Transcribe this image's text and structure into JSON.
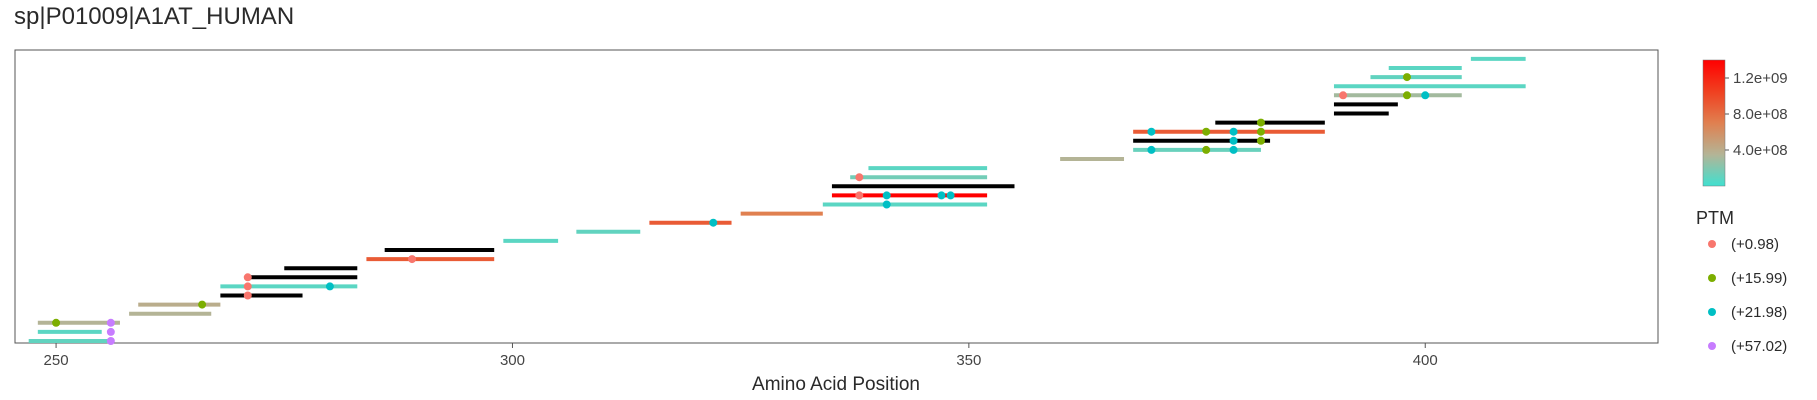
{
  "chart_data": {
    "type": "segment",
    "title": "sp|P01009|A1AT_HUMAN",
    "xlabel": "Amino Acid Position",
    "ylabel": "",
    "xlim": [
      245.5,
      425.5
    ],
    "x_ticks": [
      250,
      300,
      350,
      400
    ],
    "grid": false,
    "colorbar": {
      "min": 0,
      "max": 1400000000,
      "ticks": [
        {
          "value": 400000000,
          "label": "4.0e+08"
        },
        {
          "value": 800000000,
          "label": "8.0e+08"
        },
        {
          "value": 1200000000,
          "label": "1.2e+09"
        }
      ],
      "colors": [
        "#40e0d0",
        "#b4b496",
        "#e08050",
        "#f04020",
        "#ff0000"
      ]
    },
    "legend": {
      "title": "PTM",
      "placement": "right",
      "items": [
        {
          "label": "(+0.98)",
          "color": "#f8766d"
        },
        {
          "label": "(+15.99)",
          "color": "#7cae00"
        },
        {
          "label": "(+21.98)",
          "color": "#00bfc4"
        },
        {
          "label": "(+57.02)",
          "color": "#c77cff"
        }
      ]
    },
    "peptides": [
      {
        "start": 247,
        "end": 256,
        "level": 0,
        "intensity": 100000000
      },
      {
        "start": 248,
        "end": 255,
        "level": 1,
        "intensity": 80000000
      },
      {
        "start": 248,
        "end": 257,
        "level": 2,
        "intensity": 350000000
      },
      {
        "start": 258,
        "end": 267,
        "level": 3,
        "intensity": 350000000
      },
      {
        "start": 259,
        "end": 268,
        "level": 4,
        "intensity": 400000000
      },
      {
        "start": 268,
        "end": 277,
        "level": 5,
        "intensity": 0,
        "black": true
      },
      {
        "start": 268,
        "end": 283,
        "level": 6,
        "intensity": 80000000
      },
      {
        "start": 271,
        "end": 283,
        "level": 7,
        "intensity": 0,
        "black": true
      },
      {
        "start": 275,
        "end": 283,
        "level": 8,
        "intensity": 0,
        "black": true
      },
      {
        "start": 284,
        "end": 298,
        "level": 9,
        "intensity": 900000000
      },
      {
        "start": 286,
        "end": 298,
        "level": 10,
        "intensity": 0,
        "black": true
      },
      {
        "start": 299,
        "end": 305,
        "level": 11,
        "intensity": 80000000
      },
      {
        "start": 307,
        "end": 314,
        "level": 12,
        "intensity": 100000000
      },
      {
        "start": 315,
        "end": 324,
        "level": 13,
        "intensity": 900000000
      },
      {
        "start": 325,
        "end": 334,
        "level": 14,
        "intensity": 700000000
      },
      {
        "start": 334,
        "end": 352,
        "level": 15,
        "intensity": 80000000
      },
      {
        "start": 335,
        "end": 352,
        "level": 16,
        "intensity": 1400000000
      },
      {
        "start": 335,
        "end": 355,
        "level": 17,
        "intensity": 0,
        "black": true
      },
      {
        "start": 337,
        "end": 352,
        "level": 18,
        "intensity": 150000000
      },
      {
        "start": 339,
        "end": 352,
        "level": 19,
        "intensity": 80000000
      },
      {
        "start": 360,
        "end": 367,
        "level": 20,
        "intensity": 350000000
      },
      {
        "start": 368,
        "end": 382,
        "level": 21,
        "intensity": 120000000
      },
      {
        "start": 368,
        "end": 383,
        "level": 22,
        "intensity": 0,
        "black": true
      },
      {
        "start": 368,
        "end": 389,
        "level": 23,
        "intensity": 900000000
      },
      {
        "start": 377,
        "end": 389,
        "level": 24,
        "intensity": 0,
        "black": true
      },
      {
        "start": 390,
        "end": 396,
        "level": 25,
        "intensity": 0,
        "black": true
      },
      {
        "start": 390,
        "end": 397,
        "level": 26,
        "intensity": 0,
        "black": true
      },
      {
        "start": 390,
        "end": 404,
        "level": 27,
        "intensity": 300000000
      },
      {
        "start": 390,
        "end": 411,
        "level": 28,
        "intensity": 80000000
      },
      {
        "start": 394,
        "end": 404,
        "level": 29,
        "intensity": 100000000
      },
      {
        "start": 396,
        "end": 404,
        "level": 30,
        "intensity": 80000000
      },
      {
        "start": 405,
        "end": 411,
        "level": 31,
        "intensity": 80000000
      }
    ],
    "ptm_points": [
      {
        "x": 256,
        "level": 0,
        "ptm": 3
      },
      {
        "x": 256,
        "level": 1,
        "ptm": 3
      },
      {
        "x": 250,
        "level": 2,
        "ptm": 1
      },
      {
        "x": 256,
        "level": 2,
        "ptm": 3
      },
      {
        "x": 266,
        "level": 4,
        "ptm": 1
      },
      {
        "x": 271,
        "level": 5,
        "ptm": 0
      },
      {
        "x": 271,
        "level": 6,
        "ptm": 0
      },
      {
        "x": 280,
        "level": 6,
        "ptm": 2
      },
      {
        "x": 271,
        "level": 7,
        "ptm": 0
      },
      {
        "x": 289,
        "level": 9,
        "ptm": 0
      },
      {
        "x": 322,
        "level": 13,
        "ptm": 2
      },
      {
        "x": 341,
        "level": 15,
        "ptm": 2
      },
      {
        "x": 338,
        "level": 16,
        "ptm": 0
      },
      {
        "x": 341,
        "level": 16,
        "ptm": 2
      },
      {
        "x": 347,
        "level": 16,
        "ptm": 2
      },
      {
        "x": 348,
        "level": 16,
        "ptm": 2
      },
      {
        "x": 338,
        "level": 18,
        "ptm": 0
      },
      {
        "x": 370,
        "level": 21,
        "ptm": 2
      },
      {
        "x": 376,
        "level": 21,
        "ptm": 1
      },
      {
        "x": 379,
        "level": 21,
        "ptm": 2
      },
      {
        "x": 379,
        "level": 22,
        "ptm": 2
      },
      {
        "x": 382,
        "level": 22,
        "ptm": 1
      },
      {
        "x": 370,
        "level": 23,
        "ptm": 2
      },
      {
        "x": 376,
        "level": 23,
        "ptm": 1
      },
      {
        "x": 379,
        "level": 23,
        "ptm": 2
      },
      {
        "x": 382,
        "level": 23,
        "ptm": 1
      },
      {
        "x": 382,
        "level": 24,
        "ptm": 1
      },
      {
        "x": 391,
        "level": 27,
        "ptm": 0
      },
      {
        "x": 398,
        "level": 27,
        "ptm": 1
      },
      {
        "x": 400,
        "level": 27,
        "ptm": 2
      },
      {
        "x": 398,
        "level": 29,
        "ptm": 1
      }
    ]
  }
}
